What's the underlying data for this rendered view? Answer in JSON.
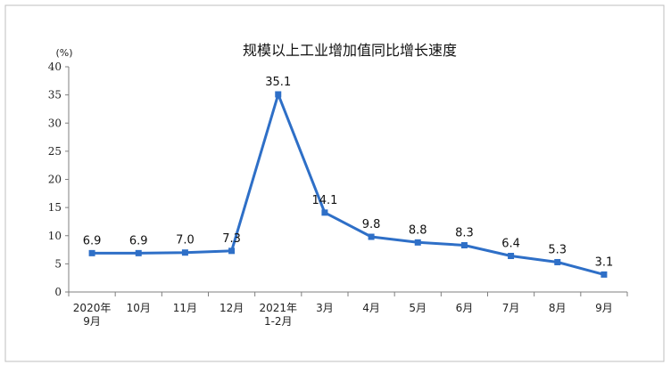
{
  "chart_data": {
    "type": "line",
    "title": "规模以上工业增加值同比增长速度",
    "ylabel": "(%)",
    "xlabel": "",
    "ylim": [
      0,
      40
    ],
    "yticks": [
      0,
      5,
      10,
      15,
      20,
      25,
      30,
      35,
      40
    ],
    "categories": [
      [
        "2020年",
        "9月"
      ],
      [
        "10月"
      ],
      [
        "11月"
      ],
      [
        "12月"
      ],
      [
        "2021年",
        "1-2月"
      ],
      [
        "3月"
      ],
      [
        "4月"
      ],
      [
        "5月"
      ],
      [
        "6月"
      ],
      [
        "7月"
      ],
      [
        "8月"
      ],
      [
        "9月"
      ]
    ],
    "values": [
      6.9,
      6.9,
      7.0,
      7.3,
      35.1,
      14.1,
      9.8,
      8.8,
      8.3,
      6.4,
      5.3,
      3.1
    ],
    "value_labels": [
      "6.9",
      "6.9",
      "7.0",
      "7.3",
      "35.1",
      "14.1",
      "9.8",
      "8.8",
      "8.3",
      "6.4",
      "5.3",
      "3.1"
    ],
    "grid": false,
    "legend": "none",
    "colors": {
      "line": "#2e6fc7",
      "axis": "#7f7f7f",
      "frame": "#bfbfbf"
    }
  }
}
